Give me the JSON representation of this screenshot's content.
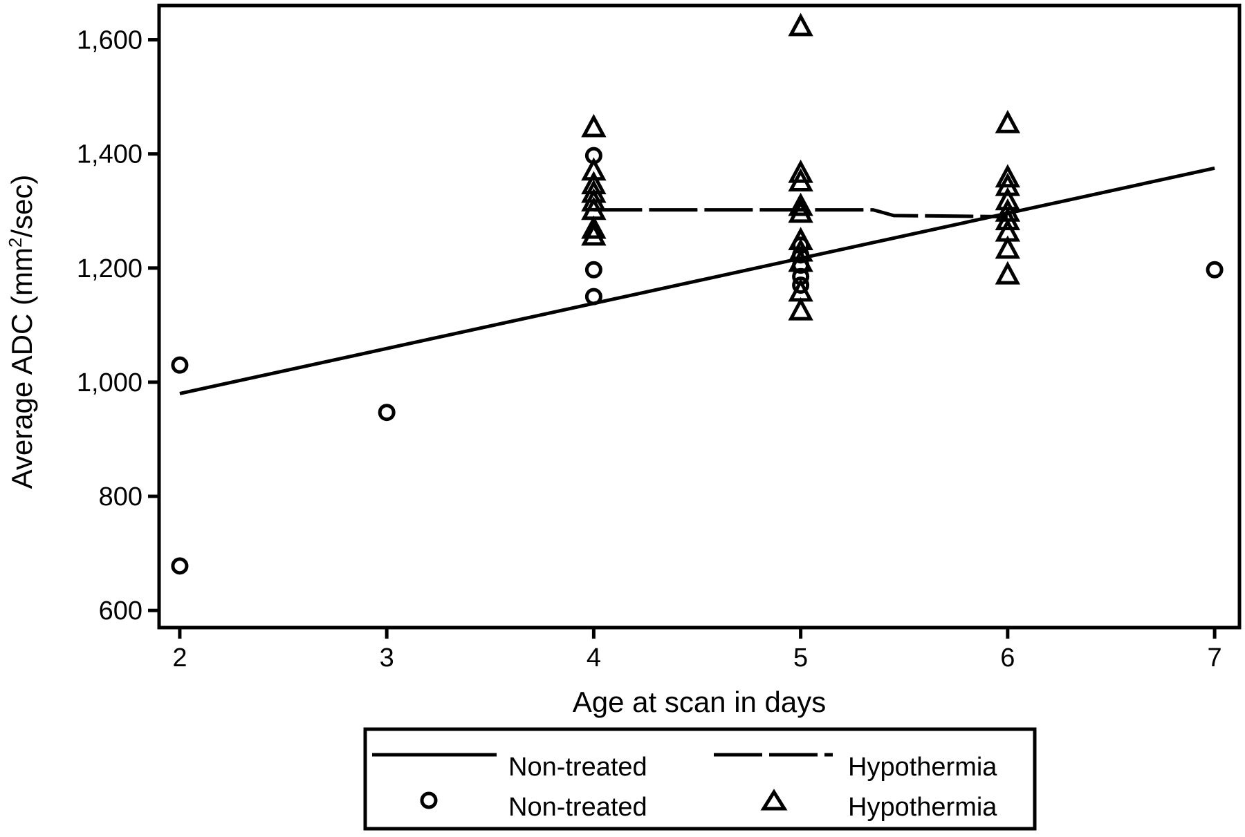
{
  "chart_data": {
    "type": "scatter",
    "title": "",
    "xlabel": "Age at scan in days",
    "ylabel_main": "Average ADC (mm",
    "ylabel_sup": "2",
    "ylabel_tail": "/sec)",
    "xlim": [
      1.9,
      7.12
    ],
    "ylim": [
      570,
      1660
    ],
    "x_ticks": [
      2,
      3,
      4,
      5,
      6,
      7
    ],
    "y_ticks": [
      600,
      800,
      1000,
      1200,
      1400,
      1600
    ],
    "y_tick_labels": [
      "600",
      "800",
      "1,000",
      "1,200",
      "1,400",
      "1,600"
    ],
    "series": [
      {
        "name": "Non-treated",
        "marker": "circle",
        "points": [
          [
            2,
            1030
          ],
          [
            2,
            678
          ],
          [
            3,
            947
          ],
          [
            4,
            1397
          ],
          [
            4,
            1197
          ],
          [
            4,
            1150
          ],
          [
            5,
            1240
          ],
          [
            5,
            1223
          ],
          [
            5,
            1205
          ],
          [
            5,
            1185
          ],
          [
            5,
            1170
          ],
          [
            7,
            1197
          ]
        ]
      },
      {
        "name": "Hypothermia",
        "marker": "triangle",
        "points": [
          [
            4,
            1448
          ],
          [
            4,
            1372
          ],
          [
            4,
            1348
          ],
          [
            4,
            1333
          ],
          [
            4,
            1318
          ],
          [
            4,
            1303
          ],
          [
            4,
            1270
          ],
          [
            4,
            1258
          ],
          [
            5,
            1625
          ],
          [
            5,
            1368
          ],
          [
            5,
            1353
          ],
          [
            5,
            1310
          ],
          [
            5,
            1298
          ],
          [
            5,
            1250
          ],
          [
            5,
            1230
          ],
          [
            5,
            1212
          ],
          [
            5,
            1160
          ],
          [
            5,
            1127
          ],
          [
            6,
            1455
          ],
          [
            6,
            1360
          ],
          [
            6,
            1345
          ],
          [
            6,
            1320
          ],
          [
            6,
            1300
          ],
          [
            6,
            1285
          ],
          [
            6,
            1265
          ],
          [
            6,
            1235
          ],
          [
            6,
            1190
          ]
        ]
      }
    ],
    "fit_lines": [
      {
        "name": "Non-treated",
        "style": "solid",
        "points": [
          [
            2,
            980
          ],
          [
            7,
            1375
          ]
        ]
      },
      {
        "name": "Hypothermia",
        "style": "dashed",
        "points": [
          [
            4,
            1302
          ],
          [
            5.35,
            1302
          ],
          [
            5.45,
            1292
          ],
          [
            6,
            1290
          ]
        ]
      }
    ],
    "legend": {
      "placement": "bottom",
      "entries": [
        {
          "label": "Non-treated",
          "kind": "solid-line"
        },
        {
          "label": "Hypothermia",
          "kind": "dashed-line"
        },
        {
          "label": "Non-treated",
          "kind": "circle"
        },
        {
          "label": "Hypothermia",
          "kind": "triangle"
        }
      ]
    },
    "grid": false
  }
}
